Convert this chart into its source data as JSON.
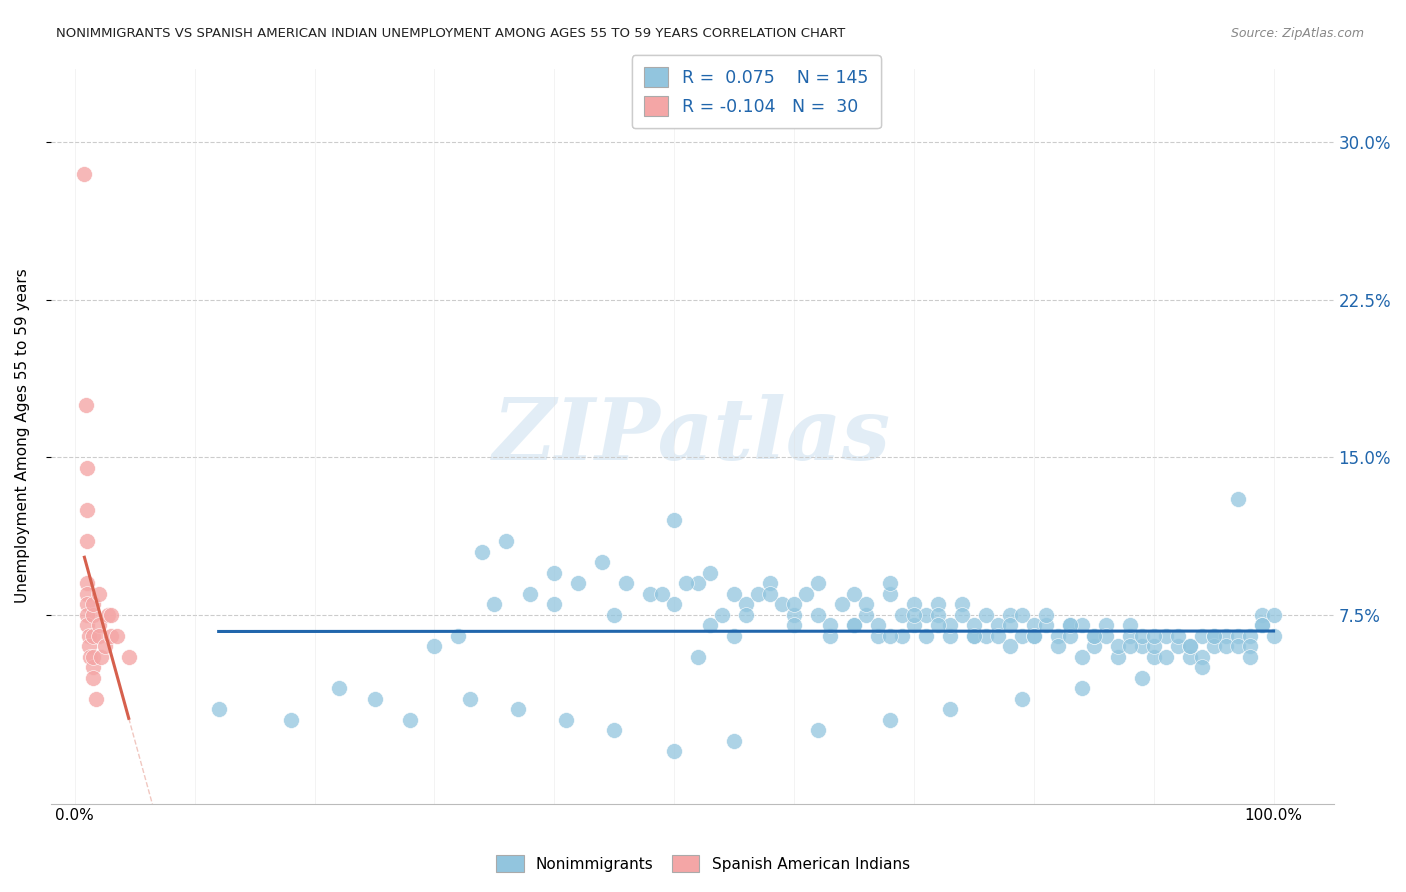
{
  "title": "NONIMMIGRANTS VS SPANISH AMERICAN INDIAN UNEMPLOYMENT AMONG AGES 55 TO 59 YEARS CORRELATION CHART",
  "source": "Source: ZipAtlas.com",
  "ylabel": "Unemployment Among Ages 55 to 59 years",
  "blue_color": "#92c5de",
  "pink_color": "#f4a6a6",
  "blue_line_color": "#2166ac",
  "pink_line_color": "#d6604d",
  "blue_r": 0.075,
  "blue_n": 145,
  "pink_r": -0.104,
  "pink_n": 30,
  "ytick_vals": [
    0.075,
    0.15,
    0.225,
    0.3
  ],
  "ytick_labels": [
    "7.5%",
    "15.0%",
    "22.5%",
    "30.0%"
  ],
  "watermark_text": "ZIPatlas",
  "blue_scatter_x": [
    0.12,
    0.18,
    0.22,
    0.25,
    0.28,
    0.3,
    0.32,
    0.35,
    0.38,
    0.4,
    0.42,
    0.45,
    0.48,
    0.5,
    0.5,
    0.52,
    0.52,
    0.53,
    0.54,
    0.55,
    0.55,
    0.56,
    0.57,
    0.58,
    0.59,
    0.6,
    0.6,
    0.61,
    0.62,
    0.63,
    0.63,
    0.64,
    0.65,
    0.65,
    0.66,
    0.66,
    0.67,
    0.67,
    0.68,
    0.68,
    0.69,
    0.69,
    0.7,
    0.7,
    0.71,
    0.71,
    0.72,
    0.72,
    0.73,
    0.73,
    0.74,
    0.74,
    0.75,
    0.75,
    0.76,
    0.76,
    0.77,
    0.77,
    0.78,
    0.78,
    0.79,
    0.79,
    0.8,
    0.8,
    0.81,
    0.81,
    0.82,
    0.82,
    0.83,
    0.83,
    0.84,
    0.84,
    0.85,
    0.85,
    0.86,
    0.86,
    0.87,
    0.87,
    0.88,
    0.88,
    0.89,
    0.89,
    0.9,
    0.9,
    0.91,
    0.91,
    0.92,
    0.92,
    0.93,
    0.93,
    0.94,
    0.94,
    0.95,
    0.95,
    0.96,
    0.96,
    0.97,
    0.97,
    0.98,
    0.98,
    0.99,
    0.99,
    1.0,
    1.0,
    0.34,
    0.36,
    0.4,
    0.44,
    0.46,
    0.49,
    0.51,
    0.53,
    0.56,
    0.58,
    0.6,
    0.62,
    0.65,
    0.68,
    0.7,
    0.72,
    0.75,
    0.78,
    0.8,
    0.83,
    0.85,
    0.88,
    0.9,
    0.93,
    0.95,
    0.97,
    0.99,
    0.33,
    0.37,
    0.41,
    0.45,
    0.5,
    0.55,
    0.62,
    0.68,
    0.73,
    0.79,
    0.84,
    0.89,
    0.94,
    0.98
  ],
  "blue_scatter_y": [
    0.03,
    0.025,
    0.04,
    0.035,
    0.025,
    0.06,
    0.065,
    0.08,
    0.085,
    0.08,
    0.09,
    0.075,
    0.085,
    0.12,
    0.08,
    0.09,
    0.055,
    0.07,
    0.075,
    0.085,
    0.065,
    0.08,
    0.085,
    0.09,
    0.08,
    0.075,
    0.07,
    0.085,
    0.09,
    0.065,
    0.07,
    0.08,
    0.085,
    0.07,
    0.075,
    0.08,
    0.065,
    0.07,
    0.085,
    0.09,
    0.075,
    0.065,
    0.08,
    0.07,
    0.075,
    0.065,
    0.08,
    0.075,
    0.065,
    0.07,
    0.08,
    0.075,
    0.065,
    0.07,
    0.075,
    0.065,
    0.07,
    0.065,
    0.075,
    0.07,
    0.065,
    0.075,
    0.07,
    0.065,
    0.07,
    0.075,
    0.065,
    0.06,
    0.07,
    0.065,
    0.055,
    0.07,
    0.06,
    0.065,
    0.07,
    0.065,
    0.055,
    0.06,
    0.065,
    0.07,
    0.06,
    0.065,
    0.055,
    0.06,
    0.065,
    0.055,
    0.06,
    0.065,
    0.055,
    0.06,
    0.065,
    0.055,
    0.065,
    0.06,
    0.065,
    0.06,
    0.065,
    0.06,
    0.065,
    0.06,
    0.075,
    0.07,
    0.075,
    0.065,
    0.105,
    0.11,
    0.095,
    0.1,
    0.09,
    0.085,
    0.09,
    0.095,
    0.075,
    0.085,
    0.08,
    0.075,
    0.07,
    0.065,
    0.075,
    0.07,
    0.065,
    0.06,
    0.065,
    0.07,
    0.065,
    0.06,
    0.065,
    0.06,
    0.065,
    0.13,
    0.07,
    0.035,
    0.03,
    0.025,
    0.02,
    0.01,
    0.015,
    0.02,
    0.025,
    0.03,
    0.035,
    0.04,
    0.045,
    0.05,
    0.055
  ],
  "pink_scatter_x": [
    0.008,
    0.009,
    0.01,
    0.01,
    0.01,
    0.01,
    0.01,
    0.01,
    0.01,
    0.01,
    0.012,
    0.012,
    0.013,
    0.015,
    0.015,
    0.015,
    0.015,
    0.015,
    0.015,
    0.018,
    0.02,
    0.02,
    0.02,
    0.022,
    0.025,
    0.028,
    0.03,
    0.03,
    0.035,
    0.045
  ],
  "pink_scatter_y": [
    0.285,
    0.175,
    0.145,
    0.125,
    0.11,
    0.09,
    0.085,
    0.08,
    0.075,
    0.07,
    0.065,
    0.06,
    0.055,
    0.05,
    0.075,
    0.08,
    0.065,
    0.055,
    0.045,
    0.035,
    0.085,
    0.07,
    0.065,
    0.055,
    0.06,
    0.075,
    0.065,
    0.075,
    0.065,
    0.055
  ]
}
